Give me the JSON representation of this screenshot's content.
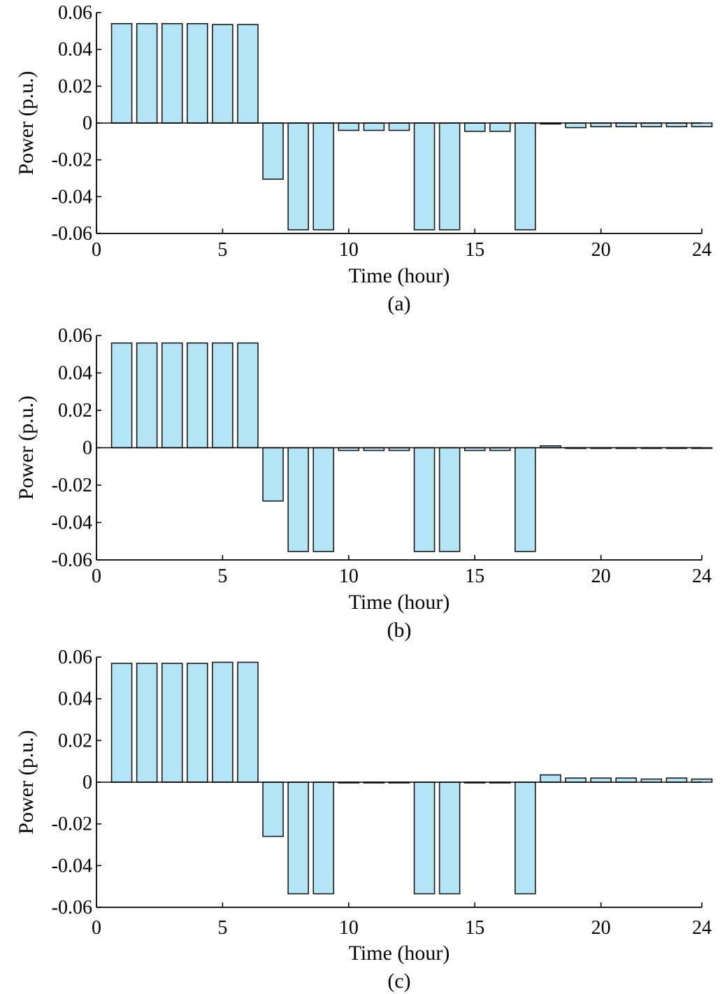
{
  "chart_data": [
    {
      "type": "bar",
      "caption": "(a)",
      "xlabel": "Time (hour)",
      "ylabel": "Power (p.u.)",
      "xlim": [
        0,
        24
      ],
      "ylim": [
        -0.06,
        0.06
      ],
      "xticks": [
        "0",
        "5",
        "10",
        "15",
        "20",
        "24"
      ],
      "yticks": [
        "0.06",
        "0.04",
        "0.02",
        "0",
        "-0.02",
        "-0.04",
        "-0.06"
      ],
      "grid": false,
      "bar_color": "#b3e5f7",
      "x": [
        1,
        2,
        3,
        4,
        5,
        6,
        7,
        8,
        9,
        10,
        11,
        12,
        13,
        14,
        15,
        16,
        17,
        18,
        19,
        20,
        21,
        22,
        23,
        24
      ],
      "values": [
        0.054,
        0.054,
        0.054,
        0.054,
        0.0535,
        0.0535,
        -0.0305,
        -0.058,
        -0.058,
        -0.004,
        -0.004,
        -0.004,
        -0.058,
        -0.058,
        -0.0045,
        -0.0045,
        -0.058,
        -0.0005,
        -0.0025,
        -0.002,
        -0.002,
        -0.002,
        -0.002,
        -0.002
      ]
    },
    {
      "type": "bar",
      "caption": "(b)",
      "xlabel": "Time (hour)",
      "ylabel": "Power (p.u.)",
      "xlim": [
        0,
        24
      ],
      "ylim": [
        -0.06,
        0.06
      ],
      "xticks": [
        "0",
        "5",
        "10",
        "15",
        "20",
        "24"
      ],
      "yticks": [
        "0.06",
        "0.04",
        "0.02",
        "0",
        "-0.02",
        "-0.04",
        "-0.06"
      ],
      "grid": false,
      "bar_color": "#b3e5f7",
      "x": [
        1,
        2,
        3,
        4,
        5,
        6,
        7,
        8,
        9,
        10,
        11,
        12,
        13,
        14,
        15,
        16,
        17,
        18,
        19,
        20,
        21,
        22,
        23,
        24
      ],
      "values": [
        0.056,
        0.056,
        0.056,
        0.056,
        0.056,
        0.056,
        -0.0285,
        -0.0555,
        -0.0555,
        -0.0015,
        -0.0015,
        -0.0015,
        -0.0555,
        -0.0555,
        -0.0015,
        -0.0015,
        -0.0555,
        0.001,
        -0.0003,
        -0.0003,
        -0.0003,
        -0.0003,
        -0.0003,
        -0.0003
      ]
    },
    {
      "type": "bar",
      "caption": "(c)",
      "xlabel": "Time (hour)",
      "ylabel": "Power (p.u.)",
      "xlim": [
        0,
        24
      ],
      "ylim": [
        -0.06,
        0.06
      ],
      "xticks": [
        "0",
        "5",
        "10",
        "15",
        "20",
        "24"
      ],
      "yticks": [
        "0.06",
        "0.04",
        "0.02",
        "0",
        "-0.02",
        "-0.04",
        "-0.06"
      ],
      "grid": false,
      "bar_color": "#b3e5f7",
      "x": [
        1,
        2,
        3,
        4,
        5,
        6,
        7,
        8,
        9,
        10,
        11,
        12,
        13,
        14,
        15,
        16,
        17,
        18,
        19,
        20,
        21,
        22,
        23,
        24
      ],
      "values": [
        0.057,
        0.057,
        0.057,
        0.057,
        0.0575,
        0.0575,
        -0.026,
        -0.0535,
        -0.0535,
        -0.0003,
        -0.0003,
        -0.0003,
        -0.0535,
        -0.0535,
        -0.0003,
        -0.0003,
        -0.0535,
        0.0035,
        0.002,
        0.002,
        0.002,
        0.0015,
        0.002,
        0.0015
      ]
    }
  ]
}
